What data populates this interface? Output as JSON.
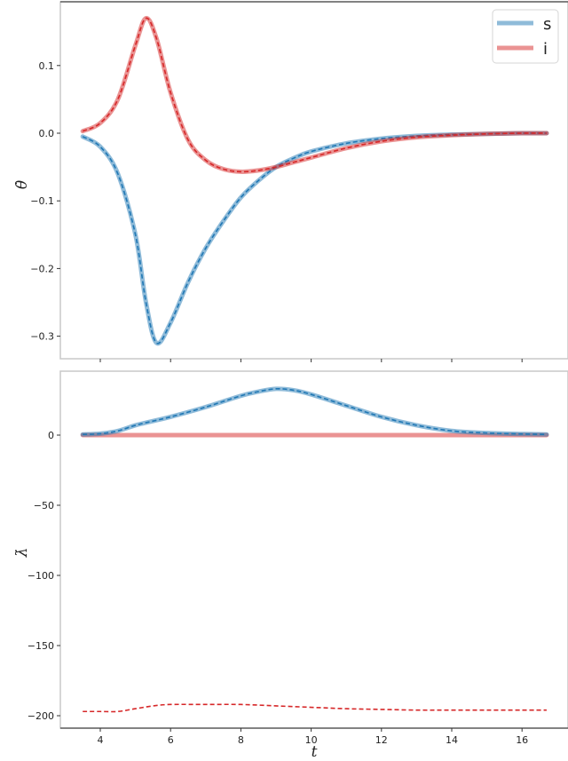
{
  "chart_data": [
    {
      "type": "line",
      "title": "",
      "xlabel": "",
      "ylabel": "θ̇",
      "xlim": [
        2.9,
        17.3
      ],
      "ylim": [
        -0.33,
        0.195
      ],
      "x_ticks": [
        4,
        6,
        8,
        10,
        12,
        14,
        16
      ],
      "y_ticks": [
        0.1,
        0.0,
        -0.1,
        -0.2,
        -0.3
      ],
      "y_tick_labels": [
        "0.1",
        "0.0",
        "−0.1",
        "−0.2",
        "−0.3"
      ],
      "grid": false,
      "legend": {
        "position": "upper right",
        "entries": [
          "s",
          "i"
        ]
      },
      "x": [
        3.5,
        4.0,
        4.5,
        5.0,
        5.3,
        5.6,
        6.0,
        6.5,
        7.0,
        7.5,
        8.0,
        8.5,
        9.0,
        9.5,
        10.0,
        11.0,
        12.0,
        13.0,
        14.0,
        15.0,
        16.0,
        16.7
      ],
      "series": [
        {
          "name": "s",
          "color": "#1f77b4",
          "values": [
            -0.005,
            -0.02,
            -0.06,
            -0.15,
            -0.25,
            -0.31,
            -0.28,
            -0.22,
            -0.17,
            -0.13,
            -0.095,
            -0.07,
            -0.05,
            -0.037,
            -0.027,
            -0.015,
            -0.008,
            -0.004,
            -0.002,
            -0.001,
            0.0,
            0.0
          ]
        },
        {
          "name": "i",
          "color": "#d62728",
          "values": [
            0.003,
            0.015,
            0.05,
            0.13,
            0.17,
            0.14,
            0.06,
            -0.01,
            -0.04,
            -0.053,
            -0.057,
            -0.055,
            -0.05,
            -0.043,
            -0.036,
            -0.022,
            -0.012,
            -0.006,
            -0.003,
            -0.001,
            0.0,
            0.0
          ]
        }
      ]
    },
    {
      "type": "line",
      "title": "",
      "xlabel": "t",
      "ylabel": "λ̇",
      "xlim": [
        2.9,
        17.3
      ],
      "ylim": [
        -209,
        45
      ],
      "x_ticks": [
        4,
        6,
        8,
        10,
        12,
        14,
        16
      ],
      "x_tick_labels": [
        "4",
        "6",
        "8",
        "10",
        "12",
        "14",
        "16"
      ],
      "y_ticks": [
        0,
        -50,
        -100,
        -150,
        -200
      ],
      "y_tick_labels": [
        "0",
        "−50",
        "−100",
        "−150",
        "−200"
      ],
      "grid": false,
      "x": [
        3.5,
        4.0,
        4.5,
        5.0,
        5.5,
        6.0,
        7.0,
        8.0,
        8.5,
        9.0,
        9.5,
        10.0,
        11.0,
        12.0,
        13.0,
        14.0,
        15.0,
        16.0,
        16.7
      ],
      "series": [
        {
          "name": "s",
          "color": "#1f77b4",
          "values": [
            0.5,
            1,
            3,
            7,
            10,
            13,
            20,
            28,
            31,
            33,
            32,
            29,
            21,
            13,
            7,
            3,
            1.5,
            0.8,
            0.5
          ]
        },
        {
          "name": "i",
          "color": "#d62728",
          "values": [
            0,
            0,
            0,
            0,
            0,
            0,
            0,
            0,
            0,
            0,
            0,
            0,
            0,
            0,
            0,
            0,
            0,
            0,
            0
          ]
        },
        {
          "name": "i (dashed reference)",
          "color": "#d62728",
          "x": [
            3.5,
            4.0,
            4.5,
            5.0,
            5.5,
            6.0,
            7.0,
            8.0,
            9.0,
            10.0,
            11.0,
            12.0,
            13.0,
            14.0,
            15.0,
            16.0,
            16.7
          ],
          "values": [
            -197,
            -197,
            -197,
            -195,
            -193,
            -192,
            -192,
            -192,
            -193,
            -194,
            -195,
            -195.5,
            -196,
            -196,
            -196,
            -196,
            -196
          ]
        }
      ]
    }
  ],
  "legend": {
    "items": [
      {
        "label": "s",
        "color": "#1f77b4"
      },
      {
        "label": "i",
        "color": "#d62728"
      }
    ]
  },
  "axes_top": {
    "ylabel": "θ̇",
    "y_tick_labels": [
      "0.1",
      "0.0",
      "−0.1",
      "−0.2",
      "−0.3"
    ]
  },
  "axes_bottom": {
    "ylabel": "λ̇",
    "xlabel": "t",
    "y_tick_labels": [
      "0",
      "−50",
      "−100",
      "−150",
      "−200"
    ],
    "x_tick_labels": [
      "4",
      "6",
      "8",
      "10",
      "12",
      "14",
      "16"
    ]
  }
}
